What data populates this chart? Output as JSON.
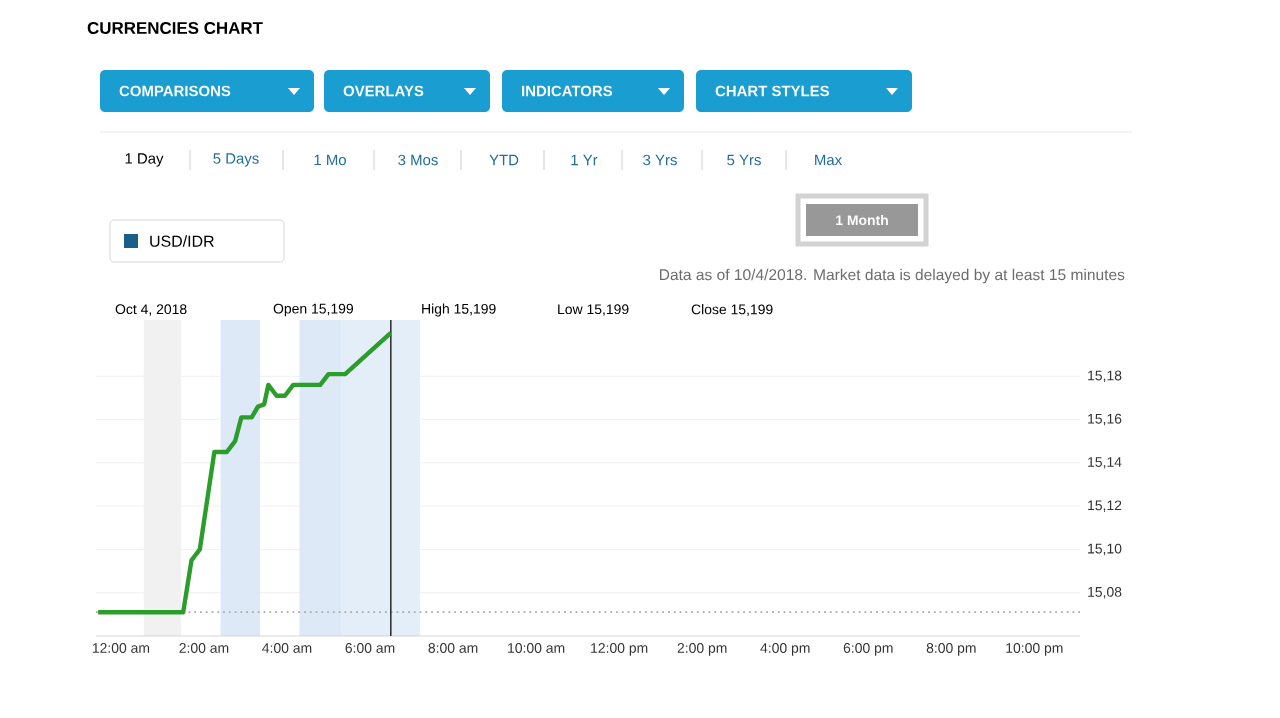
{
  "chart_data": {
    "type": "line",
    "title": "CURRENCIES CHART",
    "annotations": [
      "COMPARISONS",
      "OVERLAYS",
      "INDICATORS",
      "CHART STYLES",
      "1 Day",
      "5 Days",
      "1 Mo",
      "3 Mos",
      "YTD",
      "1 Yr",
      "3 Yrs",
      "5 Yrs",
      "Max",
      "1 Month",
      "USD/IDR",
      "Data as of 10/4/2018. Market data is delayed by at least 15 minutes",
      "Oct 4, 2018",
      "Open 15,199",
      "High 15,199",
      "Low 15,199",
      "Close 15,199"
    ],
    "series": [
      {
        "color": "#2a9d2a",
        "x": [
          -0.55,
          1.5,
          1.7,
          1.9,
          2.25,
          2.55,
          2.75,
          2.9,
          3.15,
          3.3,
          3.45,
          3.55,
          3.75,
          3.95,
          4.15,
          4.8,
          5.0,
          5.4,
          6.5
        ],
        "values": [
          15.071,
          15.071,
          15.095,
          15.1,
          15.145,
          15.145,
          15.15,
          15.161,
          15.161,
          15.166,
          15.167,
          15.176,
          15.171,
          15.171,
          15.176,
          15.176,
          15.181,
          15.181,
          15.2
        ]
      }
    ],
    "xlim": [
      -0.6,
      23.1
    ],
    "ylim": [
      15.06,
      15.206
    ],
    "xticks": [
      {
        "value": 0,
        "label": "12:00 am"
      },
      {
        "value": 2,
        "label": "2:00 am"
      },
      {
        "value": 4,
        "label": "4:00 am"
      },
      {
        "value": 6,
        "label": "6:00 am"
      },
      {
        "value": 8,
        "label": "8:00 am"
      },
      {
        "value": 10,
        "label": "10:00 am"
      },
      {
        "value": 12,
        "label": "12:00 pm"
      },
      {
        "value": 14,
        "label": "2:00 pm"
      },
      {
        "value": 16,
        "label": "4:00 pm"
      },
      {
        "value": 18,
        "label": "6:00 pm"
      },
      {
        "value": 20,
        "label": "8:00 pm"
      },
      {
        "value": 22,
        "label": "10:00 pm"
      }
    ],
    "yticks": [
      {
        "value": 15.08,
        "label": "15,08"
      },
      {
        "value": 15.1,
        "label": "15,10"
      },
      {
        "value": 15.12,
        "label": "15,12"
      },
      {
        "value": 15.14,
        "label": "15,14"
      },
      {
        "value": 15.16,
        "label": "15,16"
      },
      {
        "value": 15.18,
        "label": "15,18"
      }
    ],
    "grid": "y",
    "marker": "none",
    "line_style": "solid",
    "ref_lines": [
      {
        "axis": "y",
        "value": 15.071,
        "color": "#aaaaaa",
        "line_style": "dotted"
      },
      {
        "axis": "x",
        "value": 6.5,
        "color": "#333333",
        "line_style": "solid"
      }
    ],
    "bands": [
      {
        "axis": "x",
        "from": 0.55,
        "to": 1.45,
        "color": "#f1f1f1"
      },
      {
        "axis": "x",
        "from": 2.4,
        "to": 3.35,
        "color": "#dde9f6"
      },
      {
        "axis": "x",
        "from": 4.3,
        "to": 5.3,
        "color": "#dde9f6"
      },
      {
        "axis": "x",
        "from": 5.3,
        "to": 7.2,
        "color": "#e4eef9"
      }
    ]
  }
}
